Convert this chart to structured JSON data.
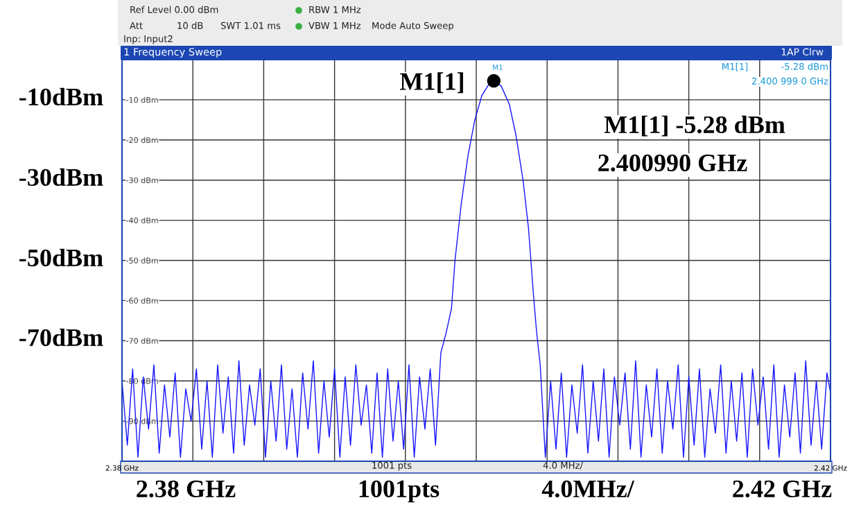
{
  "chart_data": {
    "type": "line",
    "title": "1 Frequency Sweep",
    "xlim": [
      2.38,
      2.42
    ],
    "ylim": [
      -100,
      0
    ],
    "xticks": [
      {
        "value": 2.38,
        "label": "2.38 GHz"
      },
      {
        "value": 2.384,
        "label": null
      },
      {
        "value": 2.388,
        "label": null
      },
      {
        "value": 2.392,
        "label": null
      },
      {
        "value": 2.396,
        "label": null
      },
      {
        "value": 2.4,
        "label": null
      },
      {
        "value": 2.404,
        "label": null
      },
      {
        "value": 2.408,
        "label": null
      },
      {
        "value": 2.412,
        "label": null
      },
      {
        "value": 2.416,
        "label": null
      },
      {
        "value": 2.42,
        "label": "2.42 GHz"
      }
    ],
    "yticks": [
      {
        "value": -10,
        "label": "-10 dBm"
      },
      {
        "value": -20,
        "label": "-20 dBm"
      },
      {
        "value": -30,
        "label": "-30 dBm"
      },
      {
        "value": -40,
        "label": "-40 dBm"
      },
      {
        "value": -50,
        "label": "-50 dBm"
      },
      {
        "value": -60,
        "label": "-60 dBm"
      },
      {
        "value": -70,
        "label": "-70 dBm"
      },
      {
        "value": -80,
        "label": "-80 dBm"
      },
      {
        "value": -90,
        "label": "-90 dBm"
      }
    ],
    "grid": true,
    "marker": "none",
    "line_style": "solid",
    "series": [
      {
        "color": "#1414ff",
        "x": [
          2.38,
          2.3803,
          2.3806,
          2.3809,
          2.3812,
          2.3815,
          2.3818,
          2.3821,
          2.3824,
          2.3827,
          2.383,
          2.3833,
          2.3836,
          2.3839,
          2.3842,
          2.3845,
          2.3848,
          2.3851,
          2.3854,
          2.3857,
          2.386,
          2.3863,
          2.3866,
          2.3869,
          2.3872,
          2.3875,
          2.3878,
          2.3881,
          2.3884,
          2.3887,
          2.389,
          2.3893,
          2.3896,
          2.3899,
          2.3902,
          2.3905,
          2.3908,
          2.3911,
          2.3914,
          2.3917,
          2.392,
          2.3923,
          2.3926,
          2.3929,
          2.3932,
          2.3935,
          2.3938,
          2.3941,
          2.3944,
          2.3947,
          2.395,
          2.3953,
          2.3956,
          2.3959,
          2.3962,
          2.3965,
          2.3968,
          2.3971,
          2.3974,
          2.3977,
          2.398,
          2.3983,
          2.3986,
          2.3988,
          2.39915,
          2.39953,
          2.39992,
          2.40031,
          2.4007,
          2.40099,
          2.4014,
          2.40186,
          2.40225,
          2.40264,
          2.40295,
          2.40322,
          2.40341,
          2.40361,
          2.4039,
          2.4042,
          2.4045,
          2.4048,
          2.4051,
          2.4054,
          2.4057,
          2.406,
          2.4063,
          2.4066,
          2.4069,
          2.4072,
          2.4075,
          2.4078,
          2.4081,
          2.4084,
          2.4087,
          2.409,
          2.4093,
          2.4096,
          2.4099,
          2.4102,
          2.4105,
          2.4108,
          2.4111,
          2.4114,
          2.4117,
          2.412,
          2.4123,
          2.4126,
          2.4129,
          2.4132,
          2.4135,
          2.4138,
          2.4141,
          2.4144,
          2.4147,
          2.415,
          2.4153,
          2.4156,
          2.4159,
          2.4162,
          2.4165,
          2.4168,
          2.4171,
          2.4174,
          2.4177,
          2.418,
          2.4183,
          2.4186,
          2.4189,
          2.4192,
          2.4195,
          2.4198,
          2.42
        ],
        "values": [
          -80,
          -96,
          -77,
          -99,
          -79,
          -92,
          -76,
          -98,
          -81,
          -94,
          -78,
          -99,
          -82,
          -90,
          -77,
          -97,
          -80,
          -99,
          -76,
          -93,
          -79,
          -98,
          -75,
          -96,
          -81,
          -91,
          -77,
          -99,
          -80,
          -95,
          -76,
          -97,
          -82,
          -99,
          -78,
          -92,
          -75,
          -98,
          -80,
          -94,
          -77,
          -99,
          -79,
          -96,
          -76,
          -91,
          -81,
          -98,
          -78,
          -99,
          -77,
          -95,
          -80,
          -97,
          -76,
          -99,
          -79,
          -92,
          -77,
          -96,
          -73,
          -68,
          -62,
          -50,
          -36,
          -24,
          -15,
          -9,
          -6.2,
          -5.28,
          -6.5,
          -11,
          -19,
          -30,
          -42,
          -58,
          -68,
          -76,
          -99,
          -80,
          -97,
          -78,
          -99,
          -81,
          -93,
          -76,
          -98,
          -80,
          -95,
          -77,
          -99,
          -79,
          -91,
          -78,
          -97,
          -75,
          -99,
          -81,
          -94,
          -77,
          -98,
          -80,
          -92,
          -76,
          -99,
          -79,
          -96,
          -77,
          -99,
          -82,
          -93,
          -76,
          -98,
          -80,
          -95,
          -78,
          -99,
          -77,
          -91,
          -79,
          -97,
          -76,
          -99,
          -81,
          -94,
          -78,
          -98,
          -75,
          -96,
          -80,
          -97,
          -78,
          -83
        ]
      }
    ],
    "annotations": [
      "Ref Level 0.00 dBm",
      "RBW 1 MHz",
      "Att",
      "10 dB",
      "SWT 1.01 ms",
      "VBW 1 MHz",
      "Mode Auto Sweep",
      "Inp: Input2",
      "1AP Clrw",
      "1001 pts",
      "4.0 MHz/",
      "M1",
      "M1[1]",
      "-5.28 dBm",
      "2.400 999 0 GHz",
      "-10dBm",
      "-30dBm",
      "-50dBm",
      "-70dBm",
      "2.38 GHz",
      "1001pts",
      "4.0MHz/",
      "2.42 GHz",
      "M1[1] -5.28 dBm",
      "2.400990 GHz",
      {
        "text": "M1[1]",
        "x": 2.40099,
        "y": -5.28
      }
    ]
  }
}
